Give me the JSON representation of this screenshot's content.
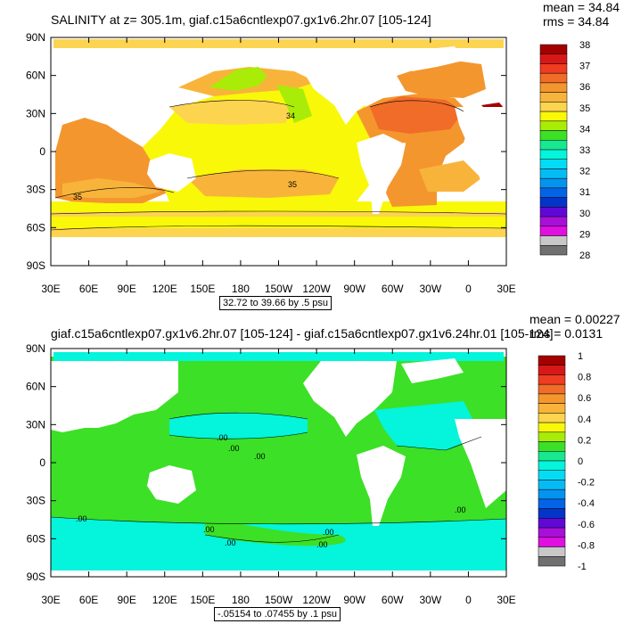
{
  "chart_data": [
    {
      "type": "heatmap",
      "title": "SALINITY at z= 305.1m, giaf.c15a6cntlexp07.gx1v6.2hr.07 [105-124]",
      "stats": {
        "mean": "mean = 34.84",
        "rms": "rms = 34.84"
      },
      "range_label": "32.72 to 39.66 by .5 psu",
      "x_ticks": [
        "30E",
        "60E",
        "90E",
        "120E",
        "150E",
        "180",
        "150W",
        "120W",
        "90W",
        "60W",
        "30W",
        "0",
        "30E"
      ],
      "y_ticks": [
        "90N",
        "60N",
        "30N",
        "0",
        "30S",
        "60S",
        "90S"
      ],
      "colorbar": {
        "labels": [
          "38",
          "37",
          "36",
          "35",
          "34",
          "33",
          "32",
          "31",
          "30",
          "29",
          "28"
        ],
        "colors": [
          "#a50000",
          "#d81818",
          "#f03c20",
          "#f06c28",
          "#f4962e",
          "#f8b43a",
          "#fcd450",
          "#f8f808",
          "#a8ec08",
          "#3ce026",
          "#18e890",
          "#04f4dc",
          "#04dcf4",
          "#04bcf4",
          "#0494f0",
          "#0464e8",
          "#0434c8",
          "#6008d8",
          "#a810d8",
          "#e010e0",
          "#c8c8c8",
          "#707070"
        ]
      },
      "contour_labels": [
        "35",
        "35",
        "34"
      ]
    },
    {
      "type": "heatmap",
      "title": "giaf.c15a6cntlexp07.gx1v6.2hr.07 [105-124] - giaf.c15a6cntlexp07.gx1v6.24hr.01 [105-124]",
      "stats": {
        "mean": "mean = 0.00227",
        "rms": "rms = 0.0131"
      },
      "range_label": "-.05154 to .07455 by .1 psu",
      "x_ticks": [
        "30E",
        "60E",
        "90E",
        "120E",
        "150E",
        "180",
        "150W",
        "120W",
        "90W",
        "60W",
        "30W",
        "0",
        "30E"
      ],
      "y_ticks": [
        "90N",
        "60N",
        "30N",
        "0",
        "30S",
        "60S",
        "90S"
      ],
      "colorbar": {
        "labels": [
          "1",
          "0.8",
          "0.6",
          "0.4",
          "0.2",
          "0",
          "-0.2",
          "-0.4",
          "-0.6",
          "-0.8",
          "-1"
        ],
        "colors": [
          "#a50000",
          "#d81818",
          "#f03c20",
          "#f06c28",
          "#f4962e",
          "#f8b43a",
          "#fcd450",
          "#f8f808",
          "#a8ec08",
          "#3ce026",
          "#18e890",
          "#04f4dc",
          "#04dcf4",
          "#04bcf4",
          "#0494f0",
          "#0464e8",
          "#0434c8",
          "#6008d8",
          "#a810d8",
          "#e010e0",
          "#c8c8c8",
          "#707070"
        ]
      },
      "contour_labels": [
        ".00",
        ".00",
        ".00",
        ".00",
        ".00",
        ".00",
        ".00",
        ".00",
        ".00"
      ]
    }
  ]
}
